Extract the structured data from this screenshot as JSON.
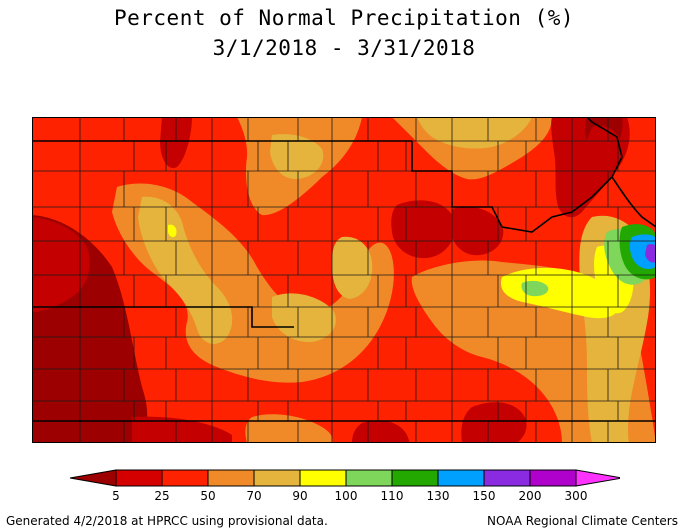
{
  "title": {
    "line1": "Percent of Normal Precipitation (%)",
    "line2": "3/1/2018 - 3/31/2018"
  },
  "legend": {
    "bins": [
      {
        "color": "#9c0000"
      },
      {
        "color": "#d40000"
      },
      {
        "color": "#ff2200"
      },
      {
        "color": "#f08a28"
      },
      {
        "color": "#e5b43c"
      },
      {
        "color": "#ffff00"
      },
      {
        "color": "#7ed65a"
      },
      {
        "color": "#22a800"
      },
      {
        "color": "#00a0ff"
      },
      {
        "color": "#8a2be2"
      },
      {
        "color": "#b000cc"
      },
      {
        "color": "#ff33ff"
      }
    ],
    "tick_labels": [
      "5",
      "25",
      "50",
      "70",
      "90",
      "100",
      "110",
      "130",
      "150",
      "200",
      "300"
    ]
  },
  "map": {
    "region_colors": {
      "base": "#ff2200",
      "dark": "#c40000",
      "darker": "#9c0000",
      "orange": "#f08a28",
      "tan": "#e5b43c",
      "yellow": "#ffff00",
      "green": "#7ed65a",
      "darkgreen": "#22a800",
      "blue": "#00a0ff",
      "purple": "#8a2be2"
    }
  },
  "footer": {
    "left": "Generated 4/2/2018 at HPRCC using provisional data.",
    "right": "NOAA Regional Climate Centers"
  }
}
